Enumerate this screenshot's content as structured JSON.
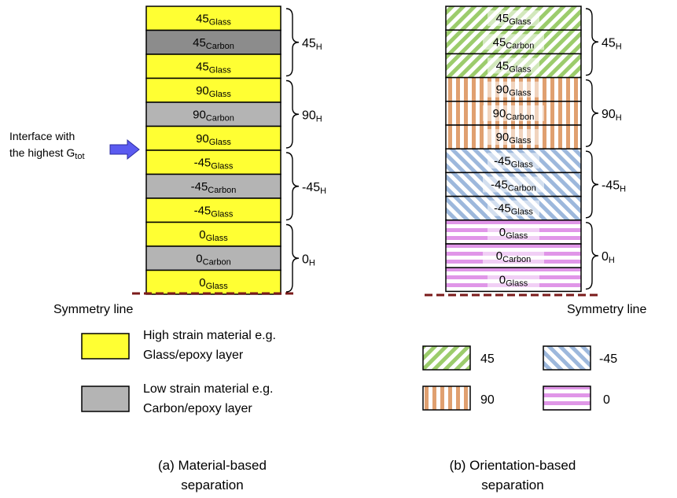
{
  "panel_a": {
    "layers": [
      {
        "angle": "45",
        "material": "Glass"
      },
      {
        "angle": "45",
        "material": "Carbon"
      },
      {
        "angle": "45",
        "material": "Glass"
      },
      {
        "angle": "90",
        "material": "Glass"
      },
      {
        "angle": "90",
        "material": "Carbon"
      },
      {
        "angle": "90",
        "material": "Glass"
      },
      {
        "angle": "-45",
        "material": "Glass"
      },
      {
        "angle": "-45",
        "material": "Carbon"
      },
      {
        "angle": "-45",
        "material": "Glass"
      },
      {
        "angle": "0",
        "material": "Glass"
      },
      {
        "angle": "0",
        "material": "Carbon"
      },
      {
        "angle": "0",
        "material": "Glass"
      }
    ],
    "groups": [
      {
        "main": "45",
        "sub": "H"
      },
      {
        "main": "90",
        "sub": "H"
      },
      {
        "main": "-45",
        "sub": "H"
      },
      {
        "main": "0",
        "sub": "H"
      }
    ],
    "symmetry_label": "Symmetry line",
    "interface": {
      "line1": "Interface    with",
      "line2": "the highest G",
      "sub": "tot"
    },
    "legend": [
      {
        "line1": "High strain material e.g.",
        "line2": "Glass/epoxy layer",
        "color": "#ffff33"
      },
      {
        "line1": "Low strain material e.g.",
        "line2": "Carbon/epoxy layer",
        "color": "#b4b4b4"
      }
    ],
    "caption": {
      "line1": "(a) Material-based",
      "line2": "separation"
    }
  },
  "panel_b": {
    "layers": [
      {
        "angle": "45",
        "material": "Glass"
      },
      {
        "angle": "45",
        "material": "Carbon"
      },
      {
        "angle": "45",
        "material": "Glass"
      },
      {
        "angle": "90",
        "material": "Glass"
      },
      {
        "angle": "90",
        "material": "Carbon"
      },
      {
        "angle": "90",
        "material": "Glass"
      },
      {
        "angle": "-45",
        "material": "Glass"
      },
      {
        "angle": "-45",
        "material": "Carbon"
      },
      {
        "angle": "-45",
        "material": "Glass"
      },
      {
        "angle": "0",
        "material": "Glass"
      },
      {
        "angle": "0",
        "material": "Carbon"
      },
      {
        "angle": "0",
        "material": "Glass"
      }
    ],
    "groups": [
      {
        "main": "45",
        "sub": "H"
      },
      {
        "main": "90",
        "sub": "H"
      },
      {
        "main": "-45",
        "sub": "H"
      },
      {
        "main": "0",
        "sub": "H"
      }
    ],
    "symmetry_label": "Symmetry line",
    "legend": [
      {
        "label": "45",
        "pattern": "diag-right",
        "color": "#9ccc6c"
      },
      {
        "label": "-45",
        "pattern": "diag-left",
        "color": "#9db8dc"
      },
      {
        "label": "90",
        "pattern": "vertical",
        "color": "#e0a070"
      },
      {
        "label": "0",
        "pattern": "horizontal",
        "color": "#e096e8"
      }
    ],
    "caption": {
      "line1": "(b) Orientation-based",
      "line2": "separation"
    }
  },
  "colors": {
    "glass": "#ffff33",
    "carbon_dark": "#8c8c8c",
    "carbon_light": "#b4b4b4",
    "symmetry_line": "#7a1a1a",
    "arrow": "#5b5bf0"
  }
}
